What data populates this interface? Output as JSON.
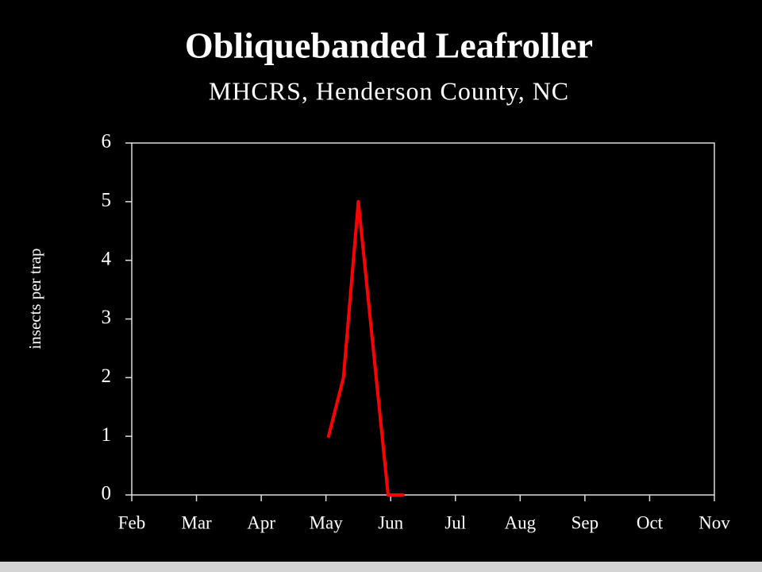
{
  "chart_data": {
    "type": "line",
    "title": "Obliquebanded Leafroller",
    "subtitle": "MHCRS, Henderson County, NC",
    "ylabel": "insects per trap",
    "x": [
      3.04,
      3.27,
      3.5,
      3.96,
      4.19
    ],
    "series": [
      {
        "name": "insects per trap",
        "color": "#ff0000",
        "values": [
          1,
          2,
          5,
          0,
          0
        ]
      }
    ],
    "xlim": [
      0,
      9
    ],
    "xticks": [
      {
        "value": 0,
        "label": "Feb"
      },
      {
        "value": 1,
        "label": "Mar"
      },
      {
        "value": 2,
        "label": "Apr"
      },
      {
        "value": 3,
        "label": "May"
      },
      {
        "value": 4,
        "label": "Jun"
      },
      {
        "value": 5,
        "label": "Jul"
      },
      {
        "value": 6,
        "label": "Aug"
      },
      {
        "value": 7,
        "label": "Sep"
      },
      {
        "value": 8,
        "label": "Oct"
      },
      {
        "value": 9,
        "label": "Nov"
      }
    ],
    "ylim": [
      0,
      6
    ],
    "yticks": [
      0,
      1,
      2,
      3,
      4,
      5,
      6
    ],
    "grid": false
  }
}
